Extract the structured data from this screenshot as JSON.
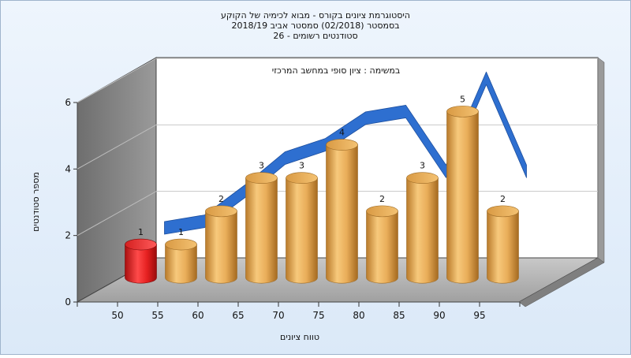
{
  "chart_data": {
    "type": "bar",
    "title_lines": [
      "היסטוגרמת ציונים בקורס - מבוא לכימיה של הקוקע",
      "בסמסטר  (02/2018)  סמסטר אביב 2018/19",
      "סטודנטים רשומים - 26"
    ],
    "subtitle": "במשימה : ציון סופי במחשב המרכזי",
    "categories": [
      "50",
      "55",
      "60",
      "65",
      "70",
      "75",
      "80",
      "85",
      "90",
      "95"
    ],
    "values": [
      1,
      1,
      2,
      3,
      3,
      4,
      2,
      3,
      5,
      2
    ],
    "highlight_index": 0,
    "trend": [
      1.1,
      1.3,
      2.2,
      3.2,
      3.6,
      4.4,
      4.6,
      2.8,
      5.6,
      2.8
    ],
    "xlabel": "טווח ציונים",
    "ylabel": "מספר סטודנטים",
    "yticks": [
      0,
      2,
      4,
      6
    ],
    "ylim": [
      0,
      6
    ],
    "grid": true,
    "colors": {
      "bar_main": "#e0a34e",
      "bar_highlight": "#e02020",
      "trend_ribbon": "#2e6fd0",
      "back_wall": "#ffffff",
      "side_wall": "#8a8a8a",
      "floor": "#b0b0b0"
    }
  }
}
